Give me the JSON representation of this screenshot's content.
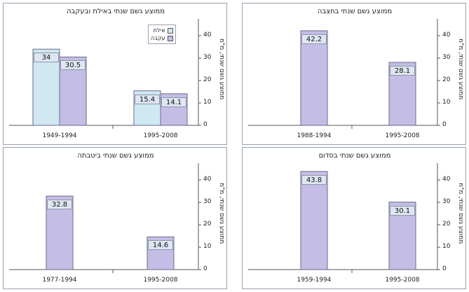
{
  "chart_data": [
    {
      "type": "bar",
      "title": "ממוצע גשם שנתי באילת ובעקבה",
      "ylabel": "ממוצע גשם שנתי, מ\"מ",
      "ylim": [
        0,
        45
      ],
      "yticks": [
        0,
        10,
        20,
        30,
        40
      ],
      "grid": false,
      "legend": "top-right",
      "categories": [
        "1949-1994",
        "1995-2008"
      ],
      "series": [
        {
          "name": "אילת",
          "values": [
            34,
            15.4
          ],
          "color": "#cfe8f2"
        },
        {
          "name": "עקבה",
          "values": [
            30.5,
            14.1
          ],
          "color": "#c4bde6"
        }
      ]
    },
    {
      "type": "bar",
      "title": "ממוצע גשם שנתי בחצבה",
      "ylabel": "ממוצע גשם שנתי, מ\"מ",
      "ylim": [
        0,
        45
      ],
      "yticks": [
        0,
        10,
        20,
        30,
        40
      ],
      "grid": false,
      "categories": [
        "1988-1994",
        "1995-2008"
      ],
      "series": [
        {
          "values": [
            42.2,
            28.1
          ],
          "color": "#c4bde6"
        }
      ]
    },
    {
      "type": "bar",
      "title": "ממוצע גשם שנתי ביטבתה",
      "ylabel": "ממוצע גשם שנתי, מ\"מ",
      "ylim": [
        0,
        45
      ],
      "yticks": [
        0,
        10,
        20,
        30,
        40
      ],
      "grid": false,
      "categories": [
        "1977-1994",
        "1995-2008"
      ],
      "series": [
        {
          "values": [
            32.8,
            14.6
          ],
          "color": "#c4bde6"
        }
      ]
    },
    {
      "type": "bar",
      "title": "ממוצע גשם שנתי בסדום",
      "ylabel": "ממוצע גשם שנתי, מ\"מ",
      "ylim": [
        0,
        45
      ],
      "yticks": [
        0,
        10,
        20,
        30,
        40
      ],
      "grid": false,
      "categories": [
        "1959-1994",
        "1995-2008"
      ],
      "series": [
        {
          "values": [
            43.8,
            30.1
          ],
          "color": "#c4bde6"
        }
      ]
    }
  ]
}
